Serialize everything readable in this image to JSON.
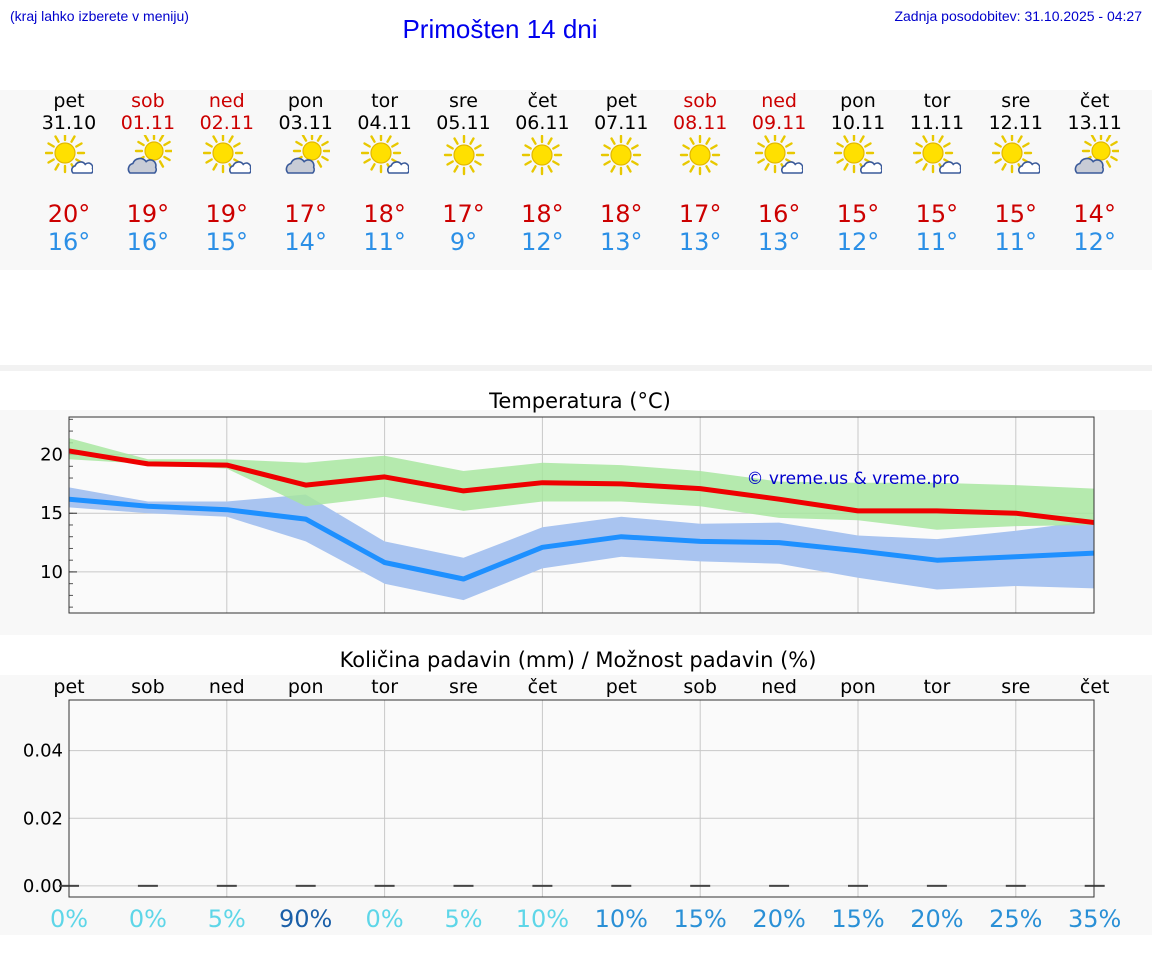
{
  "header": {
    "left_note": "(kraj lahko izberete v meniju)",
    "title": "Primošten 14 dni",
    "updated": "Zadnja posodobitev: 31.10.2025 - 04:27"
  },
  "days": [
    {
      "name": "pet",
      "date": "31.10",
      "weekend": false,
      "icon": "sun-cloud-icon",
      "tmax": "20°",
      "tmin": "16°"
    },
    {
      "name": "sob",
      "date": "01.11",
      "weekend": true,
      "icon": "sun-behind-cloud-icon",
      "tmax": "19°",
      "tmin": "16°"
    },
    {
      "name": "ned",
      "date": "02.11",
      "weekend": true,
      "icon": "sun-cloud-icon",
      "tmax": "19°",
      "tmin": "15°"
    },
    {
      "name": "pon",
      "date": "03.11",
      "weekend": false,
      "icon": "sun-behind-cloud-icon",
      "tmax": "17°",
      "tmin": "14°"
    },
    {
      "name": "tor",
      "date": "04.11",
      "weekend": false,
      "icon": "sun-cloud-icon",
      "tmax": "18°",
      "tmin": "11°"
    },
    {
      "name": "sre",
      "date": "05.11",
      "weekend": false,
      "icon": "sun-icon",
      "tmax": "17°",
      "tmin": "9°"
    },
    {
      "name": "čet",
      "date": "06.11",
      "weekend": false,
      "icon": "sun-icon",
      "tmax": "18°",
      "tmin": "12°"
    },
    {
      "name": "pet",
      "date": "07.11",
      "weekend": false,
      "icon": "sun-icon",
      "tmax": "18°",
      "tmin": "13°"
    },
    {
      "name": "sob",
      "date": "08.11",
      "weekend": true,
      "icon": "sun-icon",
      "tmax": "17°",
      "tmin": "13°"
    },
    {
      "name": "ned",
      "date": "09.11",
      "weekend": true,
      "icon": "sun-cloud-icon",
      "tmax": "16°",
      "tmin": "13°"
    },
    {
      "name": "pon",
      "date": "10.11",
      "weekend": false,
      "icon": "sun-cloud-icon",
      "tmax": "15°",
      "tmin": "12°"
    },
    {
      "name": "tor",
      "date": "11.11",
      "weekend": false,
      "icon": "sun-cloud-icon",
      "tmax": "15°",
      "tmin": "11°"
    },
    {
      "name": "sre",
      "date": "12.11",
      "weekend": false,
      "icon": "sun-cloud-icon",
      "tmax": "15°",
      "tmin": "11°"
    },
    {
      "name": "čet",
      "date": "13.11",
      "weekend": false,
      "icon": "sun-behind-cloud-icon",
      "tmax": "14°",
      "tmin": "12°"
    }
  ],
  "colors": {
    "max_line": "#ee0000",
    "max_band": "#a8e6a0",
    "min_line": "#1e90ff",
    "min_band": "#a9c4f0",
    "overlap_band": "#7fc4a8",
    "grid": "#c8c8c8",
    "copyright": "#0000cc",
    "prob_colors": [
      "#5ed6e8",
      "#3fb0e0",
      "#2a90d6",
      "#1a5fa8"
    ]
  },
  "chart_data": [
    {
      "type": "line",
      "title": "Temperatura (°C)",
      "x": [
        0,
        1,
        2,
        3,
        4,
        5,
        6,
        7,
        8,
        9,
        10,
        11,
        12,
        13
      ],
      "ylim": [
        6.5,
        23.2
      ],
      "yticks": [
        10,
        15,
        20
      ],
      "annotation": "© vreme.us & vreme.pro",
      "series": [
        {
          "name": "max",
          "values": [
            20.3,
            19.2,
            19.1,
            17.4,
            18.1,
            16.9,
            17.6,
            17.5,
            17.1,
            16.2,
            15.2,
            15.2,
            15.0,
            14.2
          ],
          "band_low": [
            19.6,
            19.2,
            18.8,
            15.6,
            16.4,
            15.2,
            16.0,
            16.0,
            15.6,
            14.6,
            14.4,
            13.6,
            13.9,
            14.0
          ],
          "band_high": [
            21.4,
            19.6,
            19.6,
            19.3,
            19.9,
            18.6,
            19.3,
            19.1,
            18.6,
            17.7,
            17.6,
            17.6,
            17.4,
            17.1
          ]
        },
        {
          "name": "min",
          "values": [
            16.2,
            15.6,
            15.3,
            14.5,
            10.8,
            9.4,
            12.1,
            13.0,
            12.6,
            12.5,
            11.8,
            11.0,
            11.3,
            11.6
          ],
          "band_low": [
            15.5,
            15.0,
            14.7,
            12.6,
            9.0,
            7.6,
            10.3,
            11.3,
            10.9,
            10.7,
            9.5,
            8.5,
            8.8,
            8.6
          ],
          "band_high": [
            17.2,
            16.0,
            16.0,
            16.6,
            12.6,
            11.2,
            13.8,
            14.7,
            14.1,
            14.2,
            13.1,
            12.8,
            13.5,
            14.4
          ]
        }
      ]
    },
    {
      "type": "bar",
      "title": "Količina padavin (mm) / Možnost padavin (%)",
      "categories": [
        "pet",
        "sob",
        "ned",
        "pon",
        "tor",
        "sre",
        "čet",
        "pet",
        "sob",
        "ned",
        "pon",
        "tor",
        "sre",
        "čet"
      ],
      "values": [
        0,
        0,
        0,
        0,
        0,
        0,
        0,
        0,
        0,
        0,
        0,
        0,
        0,
        0
      ],
      "ylim": [
        -0.0033,
        0.055
      ],
      "yticks": [
        "0.00",
        "0.02",
        "0.04"
      ],
      "ytick_values": [
        0,
        0.02,
        0.04
      ],
      "probability": [
        "0%",
        "0%",
        "5%",
        "90%",
        "0%",
        "5%",
        "10%",
        "10%",
        "15%",
        "20%",
        "15%",
        "20%",
        "25%",
        "35%"
      ],
      "probability_values": [
        0,
        0,
        5,
        90,
        0,
        5,
        10,
        10,
        15,
        20,
        15,
        20,
        25,
        35
      ]
    }
  ]
}
